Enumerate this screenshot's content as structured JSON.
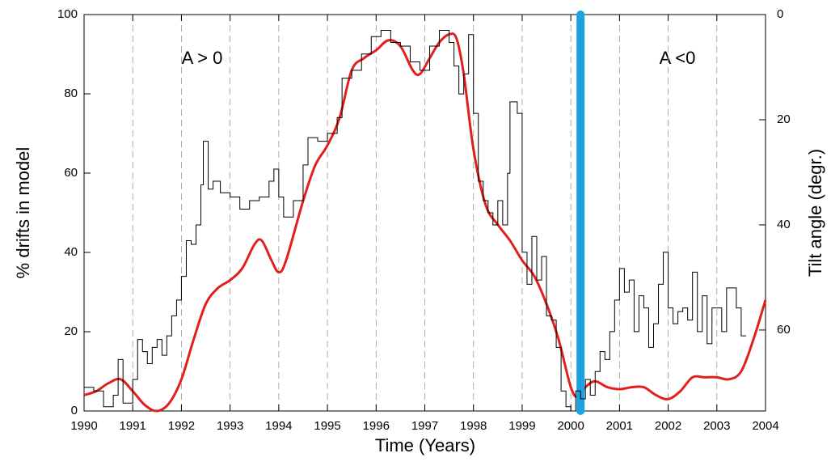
{
  "chart_data": {
    "type": "line",
    "xlabel": "Time (Years)",
    "ylabel": "% drifts in model",
    "y2label": "Tilt angle (degr.)",
    "annotations": [
      "A > 0",
      "A <0"
    ],
    "xlim": [
      1990,
      2004
    ],
    "xticks": [
      1990,
      1991,
      1992,
      1993,
      1994,
      1995,
      1996,
      1997,
      1998,
      1999,
      2000,
      2001,
      2002,
      2003,
      2004
    ],
    "ylim": [
      0,
      100
    ],
    "yticks": [
      0,
      20,
      40,
      60,
      80,
      100
    ],
    "y2lim": [
      75.4,
      0
    ],
    "y2ticks": [
      0,
      20,
      40,
      60
    ],
    "grid": true,
    "vline": {
      "x": 2000.2,
      "color": "#1aa3e0"
    },
    "series": [
      {
        "name": "drifts",
        "color": "#e0201c",
        "style": "smooth",
        "x": [
          1990,
          1990.25,
          1990.5,
          1990.75,
          1991,
          1991.25,
          1991.5,
          1991.75,
          1992,
          1992.25,
          1992.5,
          1992.75,
          1993,
          1993.25,
          1993.5,
          1993.65,
          1993.85,
          1994,
          1994.15,
          1994.5,
          1994.75,
          1995,
          1995.25,
          1995.5,
          1995.75,
          1996,
          1996.25,
          1996.5,
          1996.75,
          1996.9,
          1997.1,
          1997.3,
          1997.5,
          1997.65,
          1997.8,
          1998,
          1998.25,
          1998.5,
          1998.75,
          1999,
          1999.25,
          1999.5,
          1999.75,
          2000,
          2000.15,
          2000.3,
          2000.5,
          2000.75,
          2001,
          2001.25,
          2001.5,
          2001.75,
          2002,
          2002.25,
          2002.5,
          2002.75,
          2003,
          2003.25,
          2003.5,
          2003.75,
          2004
        ],
        "values": [
          4,
          5,
          7,
          8,
          5,
          1.5,
          0,
          2,
          8,
          18,
          27,
          31,
          33,
          36,
          42,
          43,
          38,
          35,
          38,
          53,
          62,
          67,
          74,
          86,
          89,
          91,
          93.5,
          92,
          86,
          85,
          89,
          93,
          95,
          94,
          85,
          66,
          52,
          47,
          43,
          38,
          34,
          27,
          18,
          6,
          3.5,
          6,
          7.5,
          6,
          5.5,
          6,
          6,
          4,
          3,
          5,
          8.5,
          8.5,
          8.5,
          8,
          10,
          18,
          28
        ]
      },
      {
        "name": "tilt",
        "color": "#000000",
        "style": "step",
        "axis": "y2",
        "x": [
          1990,
          1990.2,
          1990.4,
          1990.6,
          1990.7,
          1990.8,
          1991,
          1991.1,
          1991.2,
          1991.3,
          1991.4,
          1991.5,
          1991.6,
          1991.7,
          1991.8,
          1991.9,
          1992,
          1992.1,
          1992.2,
          1992.3,
          1992.4,
          1992.45,
          1992.55,
          1992.65,
          1992.8,
          1993,
          1993.2,
          1993.4,
          1993.6,
          1993.8,
          1993.9,
          1994,
          1994.1,
          1994.3,
          1994.5,
          1994.6,
          1994.8,
          1995,
          1995.2,
          1995.3,
          1995.5,
          1995.7,
          1995.9,
          1996.1,
          1996.3,
          1996.5,
          1996.7,
          1996.9,
          1997.1,
          1997.3,
          1997.5,
          1997.6,
          1997.7,
          1997.8,
          1997.9,
          1998,
          1998.1,
          1998.2,
          1998.3,
          1998.4,
          1998.5,
          1998.6,
          1998.7,
          1998.75,
          1998.9,
          1999,
          1999.1,
          1999.2,
          1999.3,
          1999.4,
          1999.5,
          1999.6,
          1999.7,
          1999.8,
          1999.9,
          2000,
          2000.1,
          2000.2,
          2000.3,
          2000.4,
          2000.5,
          2000.6,
          2000.7,
          2000.8,
          2000.9,
          2001,
          2001.1,
          2001.2,
          2001.3,
          2001.4,
          2001.5,
          2001.6,
          2001.7,
          2001.8,
          2001.9,
          2002,
          2002.1,
          2002.2,
          2002.3,
          2002.4,
          2002.5,
          2002.6,
          2002.7,
          2002.8,
          2002.9,
          2003.1,
          2003.2,
          2003.4,
          2003.5,
          2003.6
        ],
        "values": [
          70.9,
          71.6,
          74.6,
          72.4,
          65.6,
          73.9,
          69.4,
          61.8,
          64.1,
          66.4,
          63.3,
          61.8,
          64.8,
          61.1,
          57.3,
          54.3,
          49.8,
          43.0,
          43.7,
          40.0,
          32.4,
          24.1,
          33.2,
          31.7,
          33.9,
          34.7,
          37.0,
          35.4,
          34.7,
          31.7,
          29.4,
          34.7,
          38.5,
          35.4,
          28.6,
          23.4,
          24.1,
          22.6,
          19.6,
          12.1,
          10.6,
          7.5,
          4.2,
          3.0,
          5.3,
          6.0,
          9.0,
          10.6,
          6.0,
          3.0,
          5.3,
          9.8,
          15.1,
          11.3,
          3.8,
          18.8,
          31.7,
          35.4,
          37.7,
          40.0,
          35.4,
          40.0,
          30.2,
          16.6,
          18.8,
          45.2,
          51.3,
          42.2,
          50.5,
          46.0,
          57.3,
          58.1,
          63.3,
          71.6,
          74.6,
          75.4,
          71.6,
          73.1,
          69.4,
          72.4,
          67.9,
          64.1,
          65.6,
          60.3,
          54.3,
          48.3,
          52.8,
          50.5,
          60.3,
          53.5,
          55.8,
          63.3,
          58.8,
          51.3,
          45.2,
          55.8,
          58.8,
          56.5,
          55.8,
          58.1,
          49.0,
          60.3,
          53.5,
          62.6,
          55.8,
          60.3,
          52.0,
          55.8,
          61.1,
          61.1
        ]
      }
    ]
  }
}
